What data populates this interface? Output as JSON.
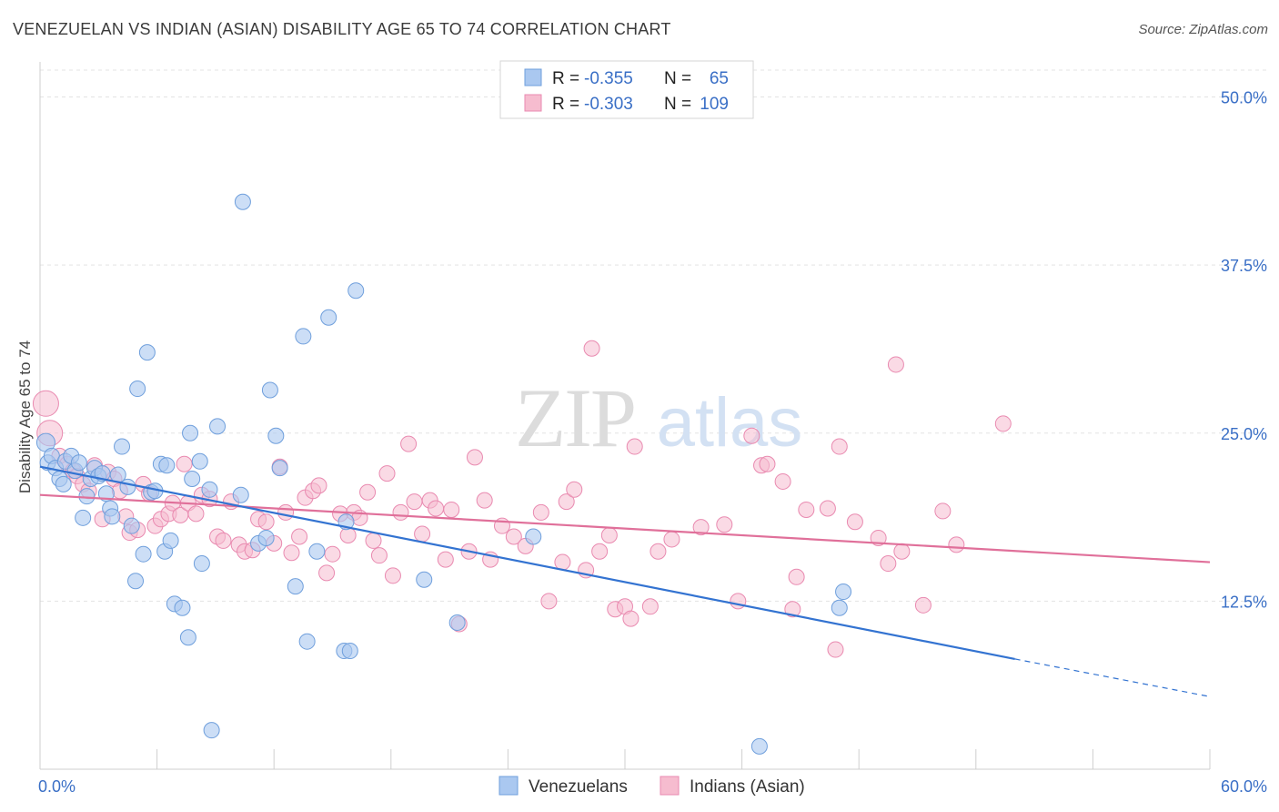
{
  "title": "VENEZUELAN VS INDIAN (ASIAN) DISABILITY AGE 65 TO 74 CORRELATION CHART",
  "source": "Source: ZipAtlas.com",
  "watermark": {
    "zip": "ZIP",
    "atlas": "atlas"
  },
  "legend_top": [
    {
      "r_label": "R =",
      "r_value": "-0.355",
      "n_label": "N =",
      "n_value": "65"
    },
    {
      "r_label": "R =",
      "r_value": "-0.303",
      "n_label": "N =",
      "n_value": "109"
    }
  ],
  "colors": {
    "blue_fill": "#aac8f0",
    "blue_stroke": "#6f9fdc",
    "blue_line": "#3373d1",
    "pink_fill": "#f6bccf",
    "pink_stroke": "#e98ab0",
    "pink_line": "#e0709a",
    "value_text": "#3a6fc6",
    "grid": "#e3e3e3"
  },
  "chart_data": {
    "type": "scatter",
    "title": "VENEZUELAN VS INDIAN (ASIAN) DISABILITY AGE 65 TO 74 CORRELATION CHART",
    "xlabel": "",
    "ylabel": "Disability Age 65 to 74",
    "xlim": [
      0,
      60
    ],
    "ylim": [
      0,
      52
    ],
    "x_tick_labels": [
      "0.0%",
      "60.0%"
    ],
    "y_ticks": [
      12.5,
      25.0,
      37.5,
      50.0
    ],
    "y_tick_labels": [
      "12.5%",
      "25.0%",
      "37.5%",
      "50.0%"
    ],
    "grid": true,
    "legend_placement": "bottom-center",
    "series": [
      {
        "name": "Venezuelans",
        "r": -0.355,
        "n": 65,
        "trend": {
          "x0": 0,
          "y0": 22.5,
          "x1": 50,
          "y1": 8.2,
          "dash_to_x": 60,
          "dash_to_y": 5.4
        },
        "points": [
          [
            0.3,
            24.3
          ],
          [
            0.4,
            22.8
          ],
          [
            0.6,
            23.3
          ],
          [
            0.8,
            22.4
          ],
          [
            1.0,
            21.6
          ],
          [
            1.2,
            21.2
          ],
          [
            1.3,
            22.9
          ],
          [
            1.6,
            23.3
          ],
          [
            1.8,
            22.2
          ],
          [
            2.0,
            22.8
          ],
          [
            2.2,
            18.7
          ],
          [
            2.4,
            20.3
          ],
          [
            2.6,
            21.6
          ],
          [
            2.8,
            22.4
          ],
          [
            3.0,
            21.8
          ],
          [
            3.2,
            22.0
          ],
          [
            3.4,
            20.5
          ],
          [
            3.6,
            19.4
          ],
          [
            3.7,
            18.8
          ],
          [
            4.0,
            21.9
          ],
          [
            4.2,
            24.0
          ],
          [
            4.5,
            21.0
          ],
          [
            4.7,
            18.1
          ],
          [
            4.9,
            14.0
          ],
          [
            5.0,
            28.3
          ],
          [
            5.3,
            16.0
          ],
          [
            5.5,
            31.0
          ],
          [
            5.7,
            20.6
          ],
          [
            5.9,
            20.7
          ],
          [
            6.2,
            22.7
          ],
          [
            6.4,
            16.2
          ],
          [
            6.5,
            22.6
          ],
          [
            6.7,
            17.0
          ],
          [
            6.9,
            12.3
          ],
          [
            7.3,
            12.0
          ],
          [
            7.6,
            9.8
          ],
          [
            7.7,
            25.0
          ],
          [
            7.8,
            21.6
          ],
          [
            8.2,
            22.9
          ],
          [
            8.3,
            15.3
          ],
          [
            8.7,
            20.8
          ],
          [
            8.8,
            2.9
          ],
          [
            9.1,
            25.5
          ],
          [
            10.3,
            20.4
          ],
          [
            10.4,
            42.2
          ],
          [
            11.2,
            16.8
          ],
          [
            11.6,
            17.2
          ],
          [
            11.8,
            28.2
          ],
          [
            12.1,
            24.8
          ],
          [
            12.3,
            22.4
          ],
          [
            13.1,
            13.6
          ],
          [
            13.5,
            32.2
          ],
          [
            13.7,
            9.5
          ],
          [
            14.2,
            16.2
          ],
          [
            14.8,
            33.6
          ],
          [
            15.6,
            8.8
          ],
          [
            15.9,
            8.8
          ],
          [
            15.7,
            18.4
          ],
          [
            16.2,
            35.6
          ],
          [
            19.7,
            14.1
          ],
          [
            21.4,
            10.9
          ],
          [
            25.3,
            17.3
          ],
          [
            36.9,
            1.7
          ],
          [
            41.2,
            13.2
          ],
          [
            41.0,
            12.0
          ]
        ]
      },
      {
        "name": "Indians (Asian)",
        "r": -0.303,
        "n": 109,
        "trend": {
          "x0": 0,
          "y0": 20.4,
          "x1": 60,
          "y1": 15.4
        },
        "points": [
          [
            0.3,
            27.2
          ],
          [
            0.5,
            25.0
          ],
          [
            1.0,
            23.3
          ],
          [
            1.4,
            22.7
          ],
          [
            1.7,
            22.2
          ],
          [
            1.9,
            21.8
          ],
          [
            2.2,
            21.2
          ],
          [
            2.5,
            20.7
          ],
          [
            2.8,
            22.6
          ],
          [
            3.2,
            18.6
          ],
          [
            3.5,
            22.1
          ],
          [
            3.8,
            21.6
          ],
          [
            4.1,
            20.7
          ],
          [
            4.4,
            18.8
          ],
          [
            4.6,
            17.6
          ],
          [
            5.0,
            17.8
          ],
          [
            5.3,
            21.2
          ],
          [
            5.6,
            20.5
          ],
          [
            5.9,
            18.1
          ],
          [
            6.2,
            18.6
          ],
          [
            6.6,
            19.0
          ],
          [
            6.8,
            19.8
          ],
          [
            7.2,
            18.9
          ],
          [
            7.4,
            22.7
          ],
          [
            7.6,
            19.8
          ],
          [
            8.0,
            19.0
          ],
          [
            8.3,
            20.4
          ],
          [
            8.7,
            20.1
          ],
          [
            9.1,
            17.3
          ],
          [
            9.4,
            17.0
          ],
          [
            9.8,
            19.9
          ],
          [
            10.2,
            16.7
          ],
          [
            10.5,
            16.2
          ],
          [
            10.9,
            16.3
          ],
          [
            11.2,
            18.6
          ],
          [
            11.6,
            18.4
          ],
          [
            12.0,
            16.8
          ],
          [
            12.3,
            22.5
          ],
          [
            12.6,
            19.1
          ],
          [
            12.9,
            16.1
          ],
          [
            13.3,
            17.3
          ],
          [
            13.6,
            20.2
          ],
          [
            14.0,
            20.7
          ],
          [
            14.3,
            21.1
          ],
          [
            14.7,
            14.6
          ],
          [
            15.0,
            16.0
          ],
          [
            15.4,
            19.0
          ],
          [
            15.8,
            17.4
          ],
          [
            16.1,
            19.1
          ],
          [
            16.4,
            18.7
          ],
          [
            16.8,
            20.6
          ],
          [
            17.1,
            17.0
          ],
          [
            17.4,
            15.9
          ],
          [
            17.8,
            22.0
          ],
          [
            18.1,
            14.4
          ],
          [
            18.5,
            19.1
          ],
          [
            18.9,
            24.2
          ],
          [
            19.2,
            19.9
          ],
          [
            19.6,
            17.5
          ],
          [
            20.0,
            20.0
          ],
          [
            20.3,
            19.4
          ],
          [
            20.8,
            15.6
          ],
          [
            21.1,
            19.3
          ],
          [
            21.5,
            10.8
          ],
          [
            22.0,
            16.2
          ],
          [
            22.3,
            23.2
          ],
          [
            22.8,
            20.0
          ],
          [
            23.1,
            15.6
          ],
          [
            23.7,
            18.1
          ],
          [
            24.3,
            17.3
          ],
          [
            24.9,
            16.6
          ],
          [
            25.7,
            19.1
          ],
          [
            26.1,
            12.5
          ],
          [
            26.8,
            15.4
          ],
          [
            27.0,
            19.9
          ],
          [
            27.4,
            20.8
          ],
          [
            28.0,
            14.8
          ],
          [
            28.3,
            31.3
          ],
          [
            28.7,
            16.2
          ],
          [
            29.2,
            17.4
          ],
          [
            29.5,
            11.9
          ],
          [
            30.0,
            12.1
          ],
          [
            30.3,
            11.2
          ],
          [
            30.5,
            24.0
          ],
          [
            31.3,
            12.1
          ],
          [
            31.7,
            16.2
          ],
          [
            32.4,
            17.1
          ],
          [
            33.9,
            18.0
          ],
          [
            35.1,
            18.2
          ],
          [
            35.8,
            12.5
          ],
          [
            36.5,
            24.8
          ],
          [
            37.0,
            22.6
          ],
          [
            37.3,
            22.7
          ],
          [
            38.1,
            21.4
          ],
          [
            38.6,
            11.9
          ],
          [
            38.8,
            14.3
          ],
          [
            39.3,
            19.3
          ],
          [
            40.4,
            19.4
          ],
          [
            40.8,
            8.9
          ],
          [
            41.0,
            24.0
          ],
          [
            41.8,
            18.4
          ],
          [
            43.0,
            17.2
          ],
          [
            43.5,
            15.3
          ],
          [
            43.9,
            30.1
          ],
          [
            44.2,
            16.2
          ],
          [
            45.3,
            12.2
          ],
          [
            46.3,
            19.2
          ],
          [
            47.0,
            16.7
          ],
          [
            49.4,
            25.7
          ]
        ]
      }
    ]
  },
  "legend_bottom": [
    {
      "label": "Venezuelans"
    },
    {
      "label": "Indians (Asian)"
    }
  ]
}
